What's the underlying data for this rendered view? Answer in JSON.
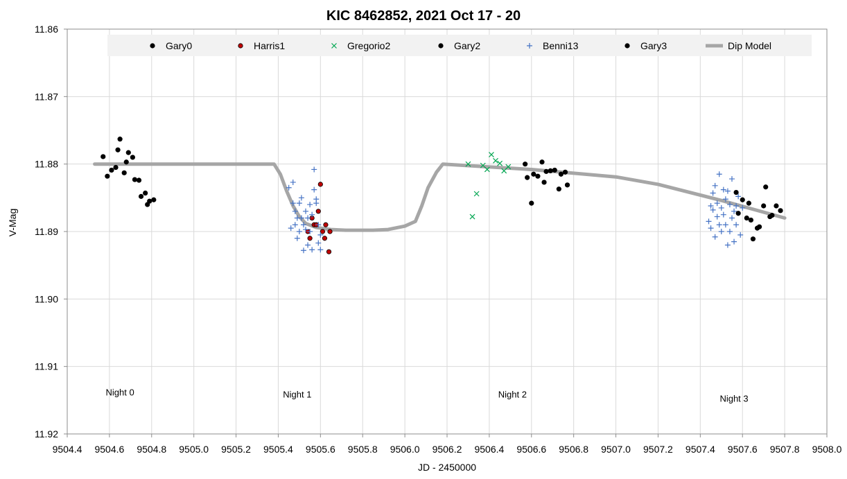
{
  "chart_data": {
    "type": "scatter",
    "title": "KIC 8462852, 2021 Oct 17 - 20",
    "xlabel": "JD - 2450000",
    "ylabel": "V-Mag",
    "xlim": [
      9504.4,
      9508.0
    ],
    "ylim": [
      11.86,
      11.92
    ],
    "y_reversed": true,
    "x_ticks": [
      "9504.4",
      "9504.6",
      "9504.8",
      "9505.0",
      "9505.2",
      "9505.4",
      "9505.6",
      "9505.8",
      "9506.0",
      "9506.2",
      "9506.4",
      "9506.6",
      "9506.8",
      "9507.0",
      "9507.2",
      "9507.4",
      "9507.6",
      "9507.8",
      "9508.0"
    ],
    "y_ticks": [
      "11.86",
      "11.87",
      "11.88",
      "11.89",
      "11.90",
      "11.91",
      "11.92"
    ],
    "grid": true,
    "legend_position": "top",
    "series": [
      {
        "name": "Gary0",
        "marker": "dot",
        "color": "#000000",
        "fill": "#000000",
        "points": [
          [
            9504.57,
            11.8789
          ],
          [
            9504.59,
            11.8818
          ],
          [
            9504.61,
            11.8809
          ],
          [
            9504.63,
            11.8805
          ],
          [
            9504.64,
            11.8779
          ],
          [
            9504.65,
            11.8763
          ],
          [
            9504.67,
            11.8813
          ],
          [
            9504.68,
            11.8797
          ],
          [
            9504.69,
            11.8783
          ],
          [
            9504.71,
            11.879
          ],
          [
            9504.72,
            11.8823
          ],
          [
            9504.74,
            11.8824
          ],
          [
            9504.75,
            11.8848
          ],
          [
            9504.77,
            11.8843
          ],
          [
            9504.78,
            11.886
          ],
          [
            9504.79,
            11.8855
          ],
          [
            9504.81,
            11.8853
          ]
        ]
      },
      {
        "name": "Harris1",
        "marker": "dot",
        "color": "#000000",
        "fill": "#c00000",
        "points": [
          [
            9505.54,
            11.89
          ],
          [
            9505.55,
            11.891
          ],
          [
            9505.56,
            11.888
          ],
          [
            9505.57,
            11.889
          ],
          [
            9505.58,
            11.889
          ],
          [
            9505.59,
            11.887
          ],
          [
            9505.6,
            11.883
          ],
          [
            9505.61,
            11.89
          ],
          [
            9505.62,
            11.891
          ],
          [
            9505.625,
            11.889
          ],
          [
            9505.64,
            11.893
          ],
          [
            9505.645,
            11.89
          ]
        ]
      },
      {
        "name": "Gregorio2",
        "marker": "x",
        "color": "#00a550",
        "points": [
          [
            9506.3,
            11.88
          ],
          [
            9506.32,
            11.8878
          ],
          [
            9506.34,
            11.8844
          ],
          [
            9506.37,
            11.8802
          ],
          [
            9506.39,
            11.8808
          ],
          [
            9506.41,
            11.8786
          ],
          [
            9506.43,
            11.8795
          ],
          [
            9506.45,
            11.8799
          ],
          [
            9506.47,
            11.881
          ],
          [
            9506.49,
            11.8804
          ]
        ]
      },
      {
        "name": "Gary2",
        "marker": "dot",
        "color": "#000000",
        "fill": "#000000",
        "points": [
          [
            9506.57,
            11.88
          ],
          [
            9506.58,
            11.882
          ],
          [
            9506.6,
            11.8858
          ],
          [
            9506.61,
            11.8815
          ],
          [
            9506.63,
            11.8818
          ],
          [
            9506.65,
            11.8797
          ],
          [
            9506.66,
            11.8827
          ],
          [
            9506.67,
            11.8811
          ],
          [
            9506.69,
            11.881
          ],
          [
            9506.71,
            11.8809
          ],
          [
            9506.73,
            11.8837
          ],
          [
            9506.74,
            11.8815
          ],
          [
            9506.76,
            11.8812
          ],
          [
            9506.77,
            11.8831
          ]
        ]
      },
      {
        "name": "Benni13",
        "marker": "plus",
        "color": "#4472c4",
        "points": [
          [
            9505.45,
            11.8835
          ],
          [
            9505.46,
            11.8895
          ],
          [
            9505.47,
            11.8827
          ],
          [
            9505.47,
            11.8858
          ],
          [
            9505.48,
            11.889
          ],
          [
            9505.48,
            11.887
          ],
          [
            9505.49,
            11.888
          ],
          [
            9505.49,
            11.891
          ],
          [
            9505.5,
            11.89
          ],
          [
            9505.5,
            11.8858
          ],
          [
            9505.51,
            11.885
          ],
          [
            9505.51,
            11.888
          ],
          [
            9505.52,
            11.8928
          ],
          [
            9505.52,
            11.889
          ],
          [
            9505.53,
            11.887
          ],
          [
            9505.53,
            11.8897
          ],
          [
            9505.54,
            11.892
          ],
          [
            9505.54,
            11.888
          ],
          [
            9505.55,
            11.89
          ],
          [
            9505.55,
            11.886
          ],
          [
            9505.56,
            11.8927
          ],
          [
            9505.56,
            11.8875
          ],
          [
            9505.57,
            11.8808
          ],
          [
            9505.57,
            11.8838
          ],
          [
            9505.58,
            11.8852
          ],
          [
            9505.58,
            11.8858
          ],
          [
            9505.59,
            11.8917
          ],
          [
            9505.59,
            11.889
          ],
          [
            9505.6,
            11.8927
          ],
          [
            9505.6,
            11.8905
          ],
          [
            9507.44,
            11.8885
          ],
          [
            9507.45,
            11.8895
          ],
          [
            9507.45,
            11.8862
          ],
          [
            9507.46,
            11.8843
          ],
          [
            9507.46,
            11.8868
          ],
          [
            9507.47,
            11.8908
          ],
          [
            9507.47,
            11.8832
          ],
          [
            9507.48,
            11.8878
          ],
          [
            9507.48,
            11.8858
          ],
          [
            9507.49,
            11.889
          ],
          [
            9507.49,
            11.8815
          ],
          [
            9507.5,
            11.8865
          ],
          [
            9507.5,
            11.89
          ],
          [
            9507.51,
            11.8838
          ],
          [
            9507.51,
            11.8875
          ],
          [
            9507.52,
            11.8852
          ],
          [
            9507.52,
            11.889
          ],
          [
            9507.53,
            11.892
          ],
          [
            9507.53,
            11.884
          ],
          [
            9507.54,
            11.886
          ],
          [
            9507.54,
            11.89
          ],
          [
            9507.55,
            11.8822
          ],
          [
            9507.55,
            11.888
          ],
          [
            9507.56,
            11.8915
          ],
          [
            9507.56,
            11.887
          ],
          [
            9507.57,
            11.8862
          ],
          [
            9507.57,
            11.889
          ],
          [
            9507.58,
            11.8848
          ],
          [
            9507.59,
            11.8905
          ],
          [
            9507.6,
            11.8865
          ]
        ]
      },
      {
        "name": "Gary3",
        "marker": "dot",
        "color": "#000000",
        "fill": "#000000",
        "points": [
          [
            9507.57,
            11.8842
          ],
          [
            9507.58,
            11.8873
          ],
          [
            9507.6,
            11.8853
          ],
          [
            9507.62,
            11.888
          ],
          [
            9507.63,
            11.8858
          ],
          [
            9507.64,
            11.8883
          ],
          [
            9507.65,
            11.8911
          ],
          [
            9507.67,
            11.8895
          ],
          [
            9507.68,
            11.8893
          ],
          [
            9507.7,
            11.8862
          ],
          [
            9507.71,
            11.8834
          ],
          [
            9507.73,
            11.8878
          ],
          [
            9507.74,
            11.8876
          ],
          [
            9507.76,
            11.8862
          ],
          [
            9507.78,
            11.8869
          ]
        ]
      },
      {
        "name": "Dip Model",
        "type": "line",
        "color": "#a6a6a6",
        "points": [
          [
            9504.53,
            11.88
          ],
          [
            9505.38,
            11.88
          ],
          [
            9505.41,
            11.8815
          ],
          [
            9505.44,
            11.884
          ],
          [
            9505.47,
            11.8862
          ],
          [
            9505.5,
            11.8878
          ],
          [
            9505.53,
            11.8888
          ],
          [
            9505.58,
            11.8894
          ],
          [
            9505.65,
            11.8897
          ],
          [
            9505.72,
            11.8898
          ],
          [
            9505.85,
            11.8898
          ],
          [
            9505.92,
            11.8897
          ],
          [
            9506.0,
            11.8892
          ],
          [
            9506.05,
            11.8885
          ],
          [
            9506.08,
            11.8862
          ],
          [
            9506.11,
            11.8835
          ],
          [
            9506.15,
            11.8812
          ],
          [
            9506.18,
            11.88
          ],
          [
            9506.6,
            11.8808
          ],
          [
            9507.0,
            11.8819
          ],
          [
            9507.2,
            11.883
          ],
          [
            9507.5,
            11.8854
          ],
          [
            9507.8,
            11.888
          ]
        ]
      }
    ],
    "annotations": [
      {
        "text": "Night 0",
        "x": 9504.65,
        "y": 11.9143
      },
      {
        "text": "Night 1",
        "x": 9505.49,
        "y": 11.9146
      },
      {
        "text": "Night 2",
        "x": 9506.51,
        "y": 11.9146
      },
      {
        "text": "Night 3",
        "x": 9507.56,
        "y": 11.9152
      }
    ]
  }
}
